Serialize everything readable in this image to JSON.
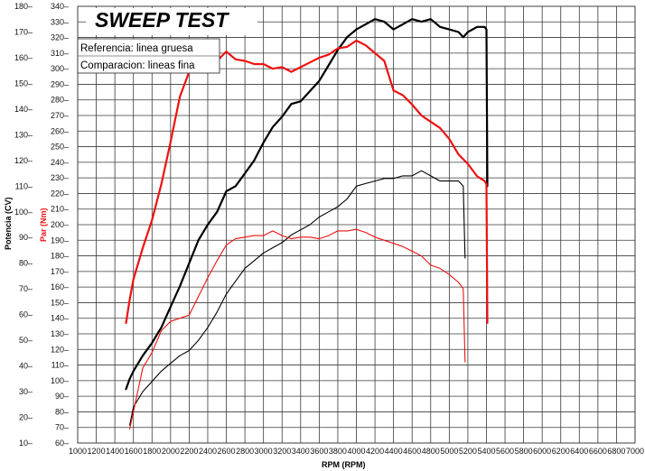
{
  "chart_data": {
    "type": "line",
    "title": "SWEEP TEST",
    "legend": [
      "Referencia: linea gruesa",
      "Comparacion: lineas fina"
    ],
    "xlabel": "RPM (RPM)",
    "ylabel_left": "Potencia (CV)",
    "ylabel_right": "Par (Nm)",
    "xlim": [
      1000,
      7000
    ],
    "power_ylim": [
      10,
      180
    ],
    "torque_ylim": [
      60,
      340
    ],
    "x_ticks": [
      "1000",
      "1200",
      "1400",
      "1600",
      "1800",
      "2000",
      "2200",
      "2400",
      "2600",
      "2800",
      "3000",
      "3200",
      "3400",
      "3600",
      "3800",
      "4000",
      "4200",
      "4400",
      "4600",
      "4800",
      "5000",
      "5200",
      "5400",
      "5600",
      "5800",
      "6000",
      "6200",
      "6400",
      "6600",
      "6800",
      "7000"
    ],
    "power_ticks": [
      "10",
      "20",
      "30",
      "40",
      "50",
      "60",
      "70",
      "80",
      "90",
      "100",
      "110",
      "120",
      "130",
      "140",
      "150",
      "160",
      "170",
      "180"
    ],
    "torque_ticks": [
      "60",
      "70",
      "80",
      "90",
      "100",
      "110",
      "120",
      "130",
      "140",
      "150",
      "160",
      "170",
      "180",
      "190",
      "200",
      "210",
      "220",
      "230",
      "240",
      "250",
      "260",
      "270",
      "280",
      "290",
      "300",
      "310",
      "320",
      "330",
      "340"
    ],
    "series": [
      {
        "name": "Potencia Referencia",
        "color": "#000000",
        "weight": "thick",
        "axis": "power",
        "points": [
          [
            1520,
            31
          ],
          [
            1560,
            35
          ],
          [
            1600,
            38
          ],
          [
            1700,
            44
          ],
          [
            1800,
            49
          ],
          [
            1900,
            55
          ],
          [
            2000,
            63
          ],
          [
            2100,
            71
          ],
          [
            2200,
            80
          ],
          [
            2300,
            89
          ],
          [
            2400,
            95
          ],
          [
            2500,
            100
          ],
          [
            2600,
            108
          ],
          [
            2700,
            110
          ],
          [
            2800,
            115
          ],
          [
            2900,
            120
          ],
          [
            3000,
            127
          ],
          [
            3100,
            133
          ],
          [
            3200,
            137
          ],
          [
            3300,
            142
          ],
          [
            3400,
            143
          ],
          [
            3500,
            147
          ],
          [
            3600,
            151
          ],
          [
            3700,
            157
          ],
          [
            3800,
            163
          ],
          [
            3900,
            168
          ],
          [
            4000,
            171
          ],
          [
            4100,
            173
          ],
          [
            4200,
            175
          ],
          [
            4300,
            174
          ],
          [
            4400,
            171
          ],
          [
            4500,
            173
          ],
          [
            4600,
            175
          ],
          [
            4700,
            174
          ],
          [
            4800,
            175
          ],
          [
            4900,
            172
          ],
          [
            5000,
            171
          ],
          [
            5100,
            170
          ],
          [
            5150,
            168
          ],
          [
            5200,
            170
          ],
          [
            5300,
            172
          ],
          [
            5380,
            172
          ],
          [
            5400,
            171
          ],
          [
            5410,
            110
          ]
        ]
      },
      {
        "name": "Par Referencia",
        "color": "#ee1111",
        "weight": "thick",
        "axis": "torque",
        "points": [
          [
            1520,
            137
          ],
          [
            1560,
            152
          ],
          [
            1600,
            165
          ],
          [
            1700,
            185
          ],
          [
            1800,
            203
          ],
          [
            1900,
            226
          ],
          [
            2000,
            253
          ],
          [
            2100,
            282
          ],
          [
            2200,
            298
          ],
          [
            2300,
            303
          ],
          [
            2400,
            306
          ],
          [
            2500,
            305
          ],
          [
            2600,
            311
          ],
          [
            2700,
            306
          ],
          [
            2800,
            305
          ],
          [
            2900,
            303
          ],
          [
            3000,
            303
          ],
          [
            3100,
            300
          ],
          [
            3200,
            301
          ],
          [
            3300,
            298
          ],
          [
            3400,
            301
          ],
          [
            3500,
            304
          ],
          [
            3600,
            307
          ],
          [
            3700,
            309
          ],
          [
            3800,
            313
          ],
          [
            3900,
            314
          ],
          [
            4000,
            318
          ],
          [
            4100,
            315
          ],
          [
            4200,
            310
          ],
          [
            4300,
            305
          ],
          [
            4400,
            286
          ],
          [
            4500,
            283
          ],
          [
            4600,
            277
          ],
          [
            4700,
            270
          ],
          [
            4800,
            266
          ],
          [
            4900,
            262
          ],
          [
            5000,
            255
          ],
          [
            5100,
            245
          ],
          [
            5200,
            239
          ],
          [
            5300,
            231
          ],
          [
            5380,
            228
          ],
          [
            5400,
            226
          ],
          [
            5410,
            137
          ]
        ]
      },
      {
        "name": "Potencia Comparacion",
        "color": "#000000",
        "weight": "thin",
        "axis": "power",
        "points": [
          [
            1560,
            17
          ],
          [
            1600,
            24
          ],
          [
            1700,
            30
          ],
          [
            1800,
            34
          ],
          [
            1900,
            38
          ],
          [
            2000,
            41
          ],
          [
            2100,
            44
          ],
          [
            2200,
            46
          ],
          [
            2300,
            50
          ],
          [
            2400,
            55
          ],
          [
            2500,
            61
          ],
          [
            2600,
            68
          ],
          [
            2700,
            73
          ],
          [
            2800,
            78
          ],
          [
            2900,
            81
          ],
          [
            3000,
            84
          ],
          [
            3100,
            86
          ],
          [
            3200,
            88
          ],
          [
            3300,
            91
          ],
          [
            3400,
            93
          ],
          [
            3500,
            95
          ],
          [
            3600,
            98
          ],
          [
            3700,
            100
          ],
          [
            3800,
            102
          ],
          [
            3900,
            105
          ],
          [
            4000,
            110
          ],
          [
            4100,
            111
          ],
          [
            4200,
            112
          ],
          [
            4300,
            113
          ],
          [
            4400,
            113
          ],
          [
            4500,
            114
          ],
          [
            4600,
            114
          ],
          [
            4700,
            116
          ],
          [
            4800,
            114
          ],
          [
            4900,
            112
          ],
          [
            5000,
            112
          ],
          [
            5100,
            112
          ],
          [
            5150,
            110
          ],
          [
            5170,
            82
          ]
        ]
      },
      {
        "name": "Par Comparacion",
        "color": "#ee1111",
        "weight": "thin",
        "axis": "torque",
        "points": [
          [
            1560,
            69
          ],
          [
            1600,
            80
          ],
          [
            1700,
            108
          ],
          [
            1800,
            118
          ],
          [
            1900,
            132
          ],
          [
            2000,
            138
          ],
          [
            2100,
            140
          ],
          [
            2200,
            142
          ],
          [
            2300,
            154
          ],
          [
            2400,
            166
          ],
          [
            2500,
            177
          ],
          [
            2600,
            187
          ],
          [
            2700,
            191
          ],
          [
            2800,
            192
          ],
          [
            2900,
            193
          ],
          [
            3000,
            193
          ],
          [
            3100,
            196
          ],
          [
            3200,
            193
          ],
          [
            3300,
            191
          ],
          [
            3400,
            192
          ],
          [
            3500,
            192
          ],
          [
            3600,
            191
          ],
          [
            3700,
            193
          ],
          [
            3800,
            196
          ],
          [
            3900,
            196
          ],
          [
            4000,
            197
          ],
          [
            4100,
            195
          ],
          [
            4200,
            192
          ],
          [
            4300,
            190
          ],
          [
            4400,
            188
          ],
          [
            4500,
            186
          ],
          [
            4600,
            183
          ],
          [
            4700,
            180
          ],
          [
            4800,
            174
          ],
          [
            4900,
            172
          ],
          [
            5000,
            168
          ],
          [
            5100,
            163
          ],
          [
            5150,
            159
          ],
          [
            5170,
            112
          ]
        ]
      }
    ]
  }
}
